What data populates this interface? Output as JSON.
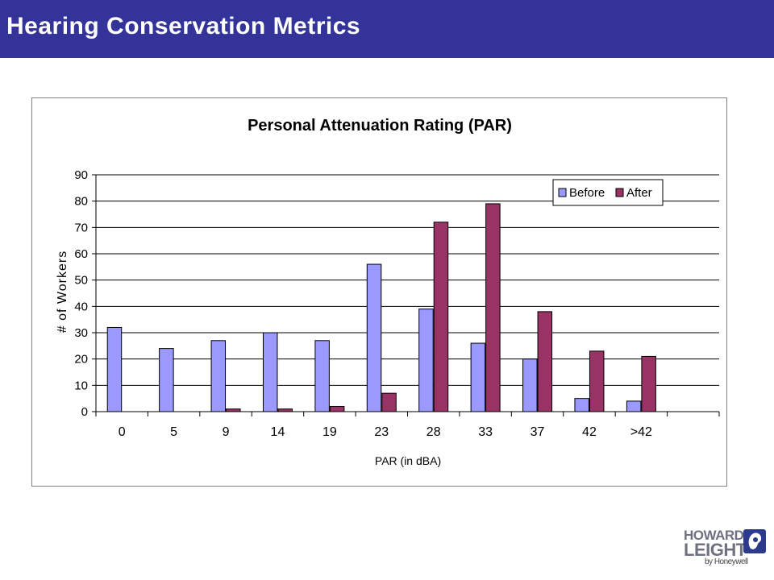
{
  "header": {
    "title": "Hearing Conservation Metrics"
  },
  "logo": {
    "line1": "HOWARD",
    "line2": "LEIGHT",
    "line3": "by Honeywell"
  },
  "colors": {
    "header_bg": "#333399",
    "before": "#9999FF",
    "after": "#993366"
  },
  "chart_data": {
    "type": "bar",
    "title": "Personal Attenuation Rating (PAR)",
    "xlabel": "PAR (in dBA)",
    "ylabel": "# of Workers",
    "ylim": [
      0,
      90
    ],
    "yticks": [
      0,
      10,
      20,
      30,
      40,
      50,
      60,
      70,
      80,
      90
    ],
    "grid": true,
    "legend_position": "top-right",
    "categories": [
      "0",
      "5",
      "9",
      "14",
      "19",
      "23",
      "28",
      "33",
      "37",
      "42",
      ">42",
      ""
    ],
    "series": [
      {
        "name": "Before",
        "color": "#9999FF",
        "values": [
          32,
          24,
          27,
          30,
          27,
          56,
          39,
          26,
          20,
          5,
          4,
          0
        ]
      },
      {
        "name": "After",
        "color": "#993366",
        "values": [
          0,
          0,
          1,
          1,
          2,
          7,
          72,
          79,
          38,
          23,
          21,
          0
        ]
      }
    ]
  }
}
